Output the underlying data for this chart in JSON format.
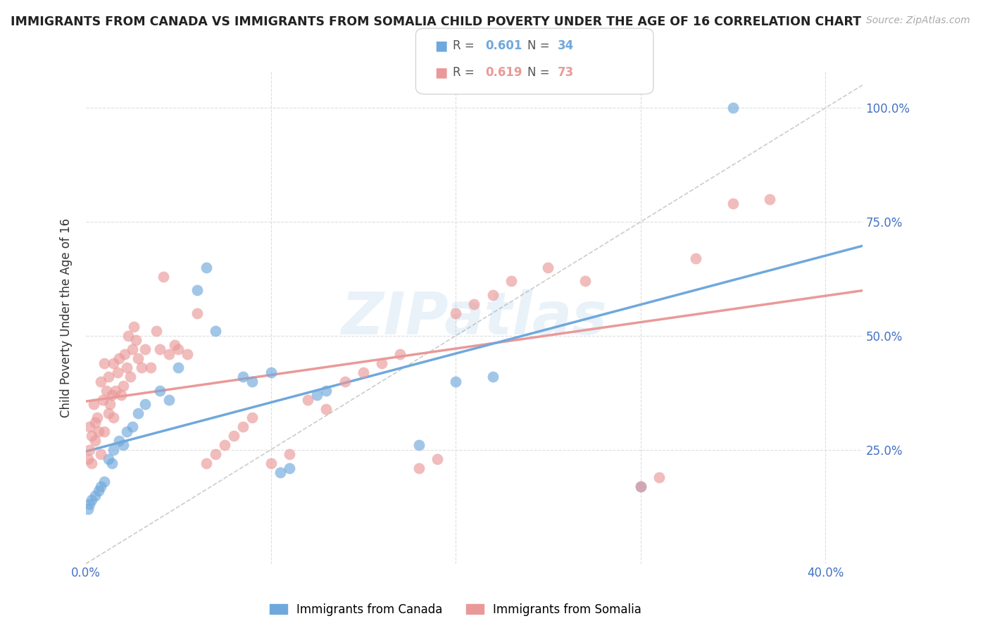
{
  "title": "IMMIGRANTS FROM CANADA VS IMMIGRANTS FROM SOMALIA CHILD POVERTY UNDER THE AGE OF 16 CORRELATION CHART",
  "source": "Source: ZipAtlas.com",
  "ylabel": "Child Poverty Under the Age of 16",
  "xlim": [
    0.0,
    0.42
  ],
  "ylim": [
    0.0,
    1.08
  ],
  "canada_color": "#6fa8dc",
  "somalia_color": "#ea9999",
  "canada_R": 0.601,
  "canada_N": 34,
  "somalia_R": 0.619,
  "somalia_N": 73,
  "watermark": "ZIPatlas",
  "canada_x": [
    0.001,
    0.002,
    0.003,
    0.005,
    0.007,
    0.008,
    0.01,
    0.012,
    0.014,
    0.015,
    0.018,
    0.02,
    0.022,
    0.025,
    0.028,
    0.032,
    0.04,
    0.045,
    0.05,
    0.06,
    0.065,
    0.07,
    0.085,
    0.09,
    0.1,
    0.105,
    0.11,
    0.125,
    0.13,
    0.18,
    0.2,
    0.22,
    0.3,
    0.35
  ],
  "canada_y": [
    0.12,
    0.13,
    0.14,
    0.15,
    0.16,
    0.17,
    0.18,
    0.23,
    0.22,
    0.25,
    0.27,
    0.26,
    0.29,
    0.3,
    0.33,
    0.35,
    0.38,
    0.36,
    0.43,
    0.6,
    0.65,
    0.51,
    0.41,
    0.4,
    0.42,
    0.2,
    0.21,
    0.37,
    0.38,
    0.26,
    0.4,
    0.41,
    0.17,
    1.0
  ],
  "somalia_x": [
    0.001,
    0.002,
    0.002,
    0.003,
    0.003,
    0.004,
    0.005,
    0.005,
    0.006,
    0.007,
    0.008,
    0.008,
    0.009,
    0.01,
    0.01,
    0.011,
    0.012,
    0.012,
    0.013,
    0.014,
    0.015,
    0.015,
    0.016,
    0.017,
    0.018,
    0.019,
    0.02,
    0.021,
    0.022,
    0.023,
    0.024,
    0.025,
    0.026,
    0.027,
    0.028,
    0.03,
    0.032,
    0.035,
    0.038,
    0.04,
    0.042,
    0.045,
    0.048,
    0.05,
    0.055,
    0.06,
    0.065,
    0.07,
    0.075,
    0.08,
    0.085,
    0.09,
    0.1,
    0.11,
    0.12,
    0.13,
    0.14,
    0.15,
    0.16,
    0.17,
    0.18,
    0.19,
    0.2,
    0.21,
    0.22,
    0.23,
    0.25,
    0.27,
    0.3,
    0.31,
    0.33,
    0.35,
    0.37
  ],
  "somalia_y": [
    0.23,
    0.25,
    0.3,
    0.22,
    0.28,
    0.35,
    0.27,
    0.31,
    0.32,
    0.29,
    0.24,
    0.4,
    0.36,
    0.29,
    0.44,
    0.38,
    0.33,
    0.41,
    0.35,
    0.37,
    0.32,
    0.44,
    0.38,
    0.42,
    0.45,
    0.37,
    0.39,
    0.46,
    0.43,
    0.5,
    0.41,
    0.47,
    0.52,
    0.49,
    0.45,
    0.43,
    0.47,
    0.43,
    0.51,
    0.47,
    0.63,
    0.46,
    0.48,
    0.47,
    0.46,
    0.55,
    0.22,
    0.24,
    0.26,
    0.28,
    0.3,
    0.32,
    0.22,
    0.24,
    0.36,
    0.34,
    0.4,
    0.42,
    0.44,
    0.46,
    0.21,
    0.23,
    0.55,
    0.57,
    0.59,
    0.62,
    0.65,
    0.62,
    0.17,
    0.19,
    0.67,
    0.79,
    0.8
  ],
  "bg_color": "#ffffff",
  "grid_color": "#dddddd",
  "tick_color": "#4472c4",
  "title_color": "#222222",
  "source_color": "#aaaaaa"
}
